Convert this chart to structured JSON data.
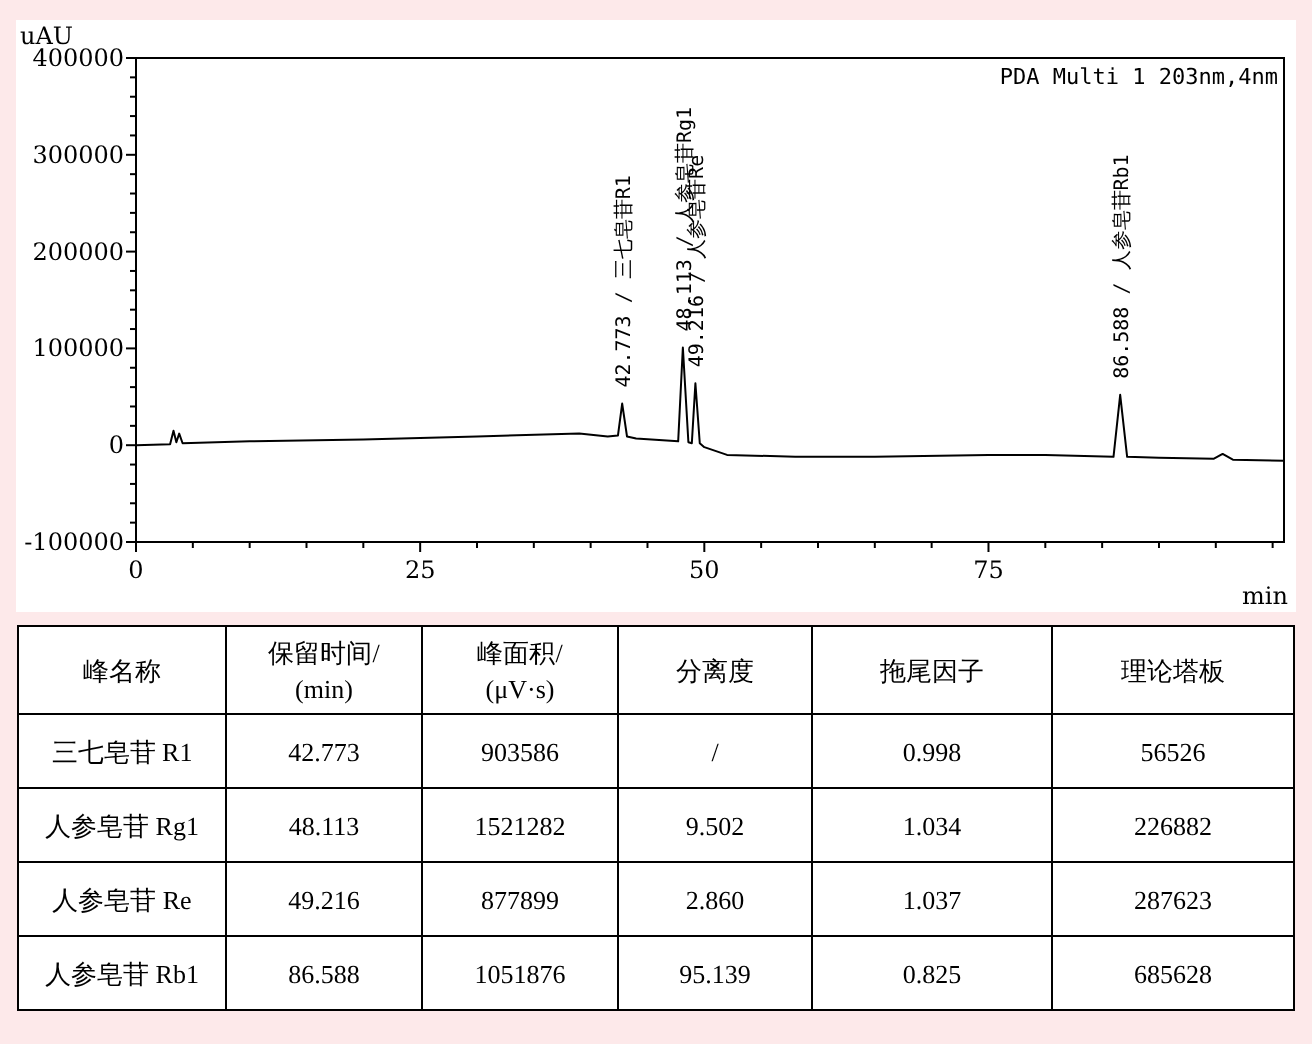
{
  "chart_data": [
    {
      "type": "line",
      "xlabel": "min",
      "ylabel": "uAU",
      "xlim": [
        0,
        101
      ],
      "ylim": [
        -100000,
        400000
      ],
      "xticks": [
        0,
        {
          "value": 5,
          "label": null
        },
        {
          "value": 10,
          "label": null
        },
        {
          "value": 15,
          "label": null
        },
        {
          "value": 20,
          "label": null
        },
        25,
        {
          "value": 30,
          "label": null
        },
        {
          "value": 35,
          "label": null
        },
        {
          "value": 40,
          "label": null
        },
        {
          "value": 45,
          "label": null
        },
        50,
        {
          "value": 55,
          "label": null
        },
        {
          "value": 60,
          "label": null
        },
        {
          "value": 65,
          "label": null
        },
        {
          "value": 70,
          "label": null
        },
        75,
        {
          "value": 80,
          "label": null
        },
        {
          "value": 85,
          "label": null
        },
        {
          "value": 90,
          "label": null
        },
        {
          "value": 95,
          "label": null
        },
        {
          "value": 100,
          "label": null
        }
      ],
      "yticks": [
        -100000,
        {
          "value": -80000,
          "label": null
        },
        {
          "value": -60000,
          "label": null
        },
        {
          "value": -40000,
          "label": null
        },
        {
          "value": -20000,
          "label": null
        },
        0,
        {
          "value": 20000,
          "label": null
        },
        {
          "value": 40000,
          "label": null
        },
        {
          "value": 60000,
          "label": null
        },
        {
          "value": 80000,
          "label": null
        },
        100000,
        {
          "value": 120000,
          "label": null
        },
        {
          "value": 140000,
          "label": null
        },
        {
          "value": 160000,
          "label": null
        },
        {
          "value": 180000,
          "label": null
        },
        200000,
        {
          "value": 220000,
          "label": null
        },
        {
          "value": 240000,
          "label": null
        },
        {
          "value": 260000,
          "label": null
        },
        {
          "value": 280000,
          "label": null
        },
        300000,
        {
          "value": 320000,
          "label": null
        },
        {
          "value": 340000,
          "label": null
        },
        {
          "value": 360000,
          "label": null
        },
        {
          "value": 380000,
          "label": null
        },
        400000
      ],
      "x": [
        0,
        3.0,
        3.3,
        3.55,
        3.8,
        4.1,
        10,
        20,
        30,
        39,
        41.5,
        42.4,
        42.773,
        43.2,
        44,
        47.7,
        48.113,
        48.6,
        48.9,
        49.216,
        49.6,
        50,
        52,
        58,
        65,
        75,
        80,
        86.0,
        86.588,
        87.2,
        90,
        94.8,
        95.6,
        96.5,
        101
      ],
      "series": [
        {
          "color": "#000000",
          "values": [
            0,
            1000,
            15000,
            3000,
            12000,
            2000,
            4000,
            6000,
            9000,
            12000,
            9000,
            10000,
            43000,
            9000,
            7000,
            4000,
            101000,
            3000,
            2000,
            64000,
            2000,
            -2000,
            -10000,
            -12000,
            -12000,
            -10000,
            -10000,
            -12000,
            52000,
            -12000,
            -13000,
            -14000,
            -9000,
            -15000,
            -16000
          ]
        }
      ],
      "annotations": [
        {
          "text": "42.773 / 三七皂苷R1",
          "x": 42.773,
          "y": 43000
        },
        {
          "text": "48.113 / 人参皂苷Rg1",
          "x": 48.113,
          "y": 101000
        },
        {
          "text": "49.216 / 人参皂苷Re",
          "x": 49.216,
          "y": 64000
        },
        {
          "text": "86.588 / 人参皂苷Rb1",
          "x": 86.588,
          "y": 52000
        },
        "PDA Multi 1 203nm,4nm"
      ]
    },
    {
      "type": "other",
      "annotations": [
        "峰名称",
        "保留时间/(min)",
        "峰面积/(μV·s)",
        "分离度",
        "拖尾因子",
        "理论塔板",
        "三七皂苷 R1",
        "42.773",
        "903586",
        "/",
        "0.998",
        "56526",
        "人参皂苷 Rg1",
        "48.113",
        "1521282",
        "9.502",
        "1.034",
        "226882",
        "人参皂苷 Re",
        "49.216",
        "877899",
        "2.860",
        "1.037",
        "287623",
        "人参皂苷 Rb1",
        "86.588",
        "1051876",
        "95.139",
        "0.825",
        "685628"
      ]
    }
  ]
}
